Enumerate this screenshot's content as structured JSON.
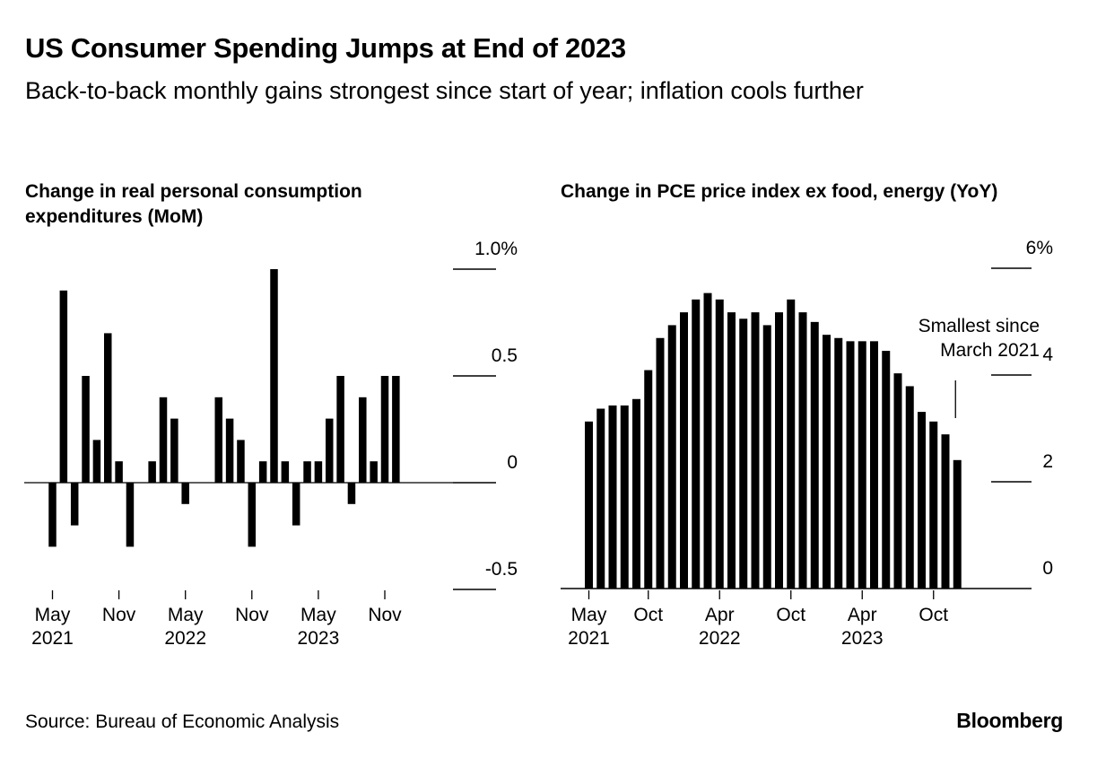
{
  "title": "US Consumer Spending Jumps at End of 2023",
  "subtitle": "Back-to-back monthly gains strongest since start of year; inflation cools further",
  "source": "Source: Bureau of Economic Analysis",
  "brand": "Bloomberg",
  "chart_data": [
    {
      "type": "bar",
      "title": "Change in real personal consumption expenditures (MoM)",
      "ylim": [
        -0.5,
        1.0
      ],
      "y_ticks": [
        {
          "value": 1.0,
          "label": "1.0%"
        },
        {
          "value": 0.5,
          "label": "0.5"
        },
        {
          "value": 0,
          "label": "0"
        },
        {
          "value": -0.5,
          "label": "-0.5"
        }
      ],
      "x_ticks": [
        {
          "index": 0,
          "label": "May",
          "sublabel": "2021"
        },
        {
          "index": 6,
          "label": "Nov",
          "sublabel": ""
        },
        {
          "index": 12,
          "label": "May",
          "sublabel": "2022"
        },
        {
          "index": 18,
          "label": "Nov",
          "sublabel": ""
        },
        {
          "index": 24,
          "label": "May",
          "sublabel": "2023"
        },
        {
          "index": 30,
          "label": "Nov",
          "sublabel": ""
        }
      ],
      "categories": [
        "2021-05",
        "2021-06",
        "2021-07",
        "2021-08",
        "2021-09",
        "2021-10",
        "2021-11",
        "2021-12",
        "2022-01",
        "2022-02",
        "2022-03",
        "2022-04",
        "2022-05",
        "2022-06",
        "2022-07",
        "2022-08",
        "2022-09",
        "2022-10",
        "2022-11",
        "2022-12",
        "2023-01",
        "2023-02",
        "2023-03",
        "2023-04",
        "2023-05",
        "2023-06",
        "2023-07",
        "2023-08",
        "2023-09",
        "2023-10",
        "2023-11",
        "2023-12"
      ],
      "values": [
        -0.3,
        0.9,
        -0.2,
        0.5,
        0.2,
        0.7,
        0.1,
        -0.3,
        0.0,
        0.1,
        0.4,
        0.3,
        -0.1,
        0.0,
        0.0,
        0.4,
        0.3,
        0.2,
        -0.3,
        0.1,
        1.0,
        0.1,
        -0.2,
        0.1,
        0.1,
        0.3,
        0.5,
        -0.1,
        0.4,
        0.1,
        0.5,
        0.5
      ],
      "grid": false,
      "color": "#000000"
    },
    {
      "type": "bar",
      "title": "Change in PCE price index ex food, energy (YoY)",
      "ylim": [
        1,
        6
      ],
      "y_ticks": [
        {
          "value": 6,
          "label": "6%"
        },
        {
          "value": 4,
          "label": "4"
        },
        {
          "value": 2,
          "label": "2"
        },
        {
          "value": 0,
          "label": "0"
        }
      ],
      "x_ticks": [
        {
          "index": 0,
          "label": "May",
          "sublabel": "2021"
        },
        {
          "index": 5,
          "label": "Oct",
          "sublabel": ""
        },
        {
          "index": 11,
          "label": "Apr",
          "sublabel": "2022"
        },
        {
          "index": 17,
          "label": "Oct",
          "sublabel": ""
        },
        {
          "index": 23,
          "label": "Apr",
          "sublabel": "2023"
        },
        {
          "index": 29,
          "label": "Oct",
          "sublabel": ""
        }
      ],
      "categories": [
        "2021-05",
        "2021-06",
        "2021-07",
        "2021-08",
        "2021-09",
        "2021-10",
        "2021-11",
        "2021-12",
        "2022-01",
        "2022-02",
        "2022-03",
        "2022-04",
        "2022-05",
        "2022-06",
        "2022-07",
        "2022-08",
        "2022-09",
        "2022-10",
        "2022-11",
        "2022-12",
        "2023-01",
        "2023-02",
        "2023-03",
        "2023-04",
        "2023-05",
        "2023-06",
        "2023-07",
        "2023-08",
        "2023-09",
        "2023-10",
        "2023-11",
        "2023-12"
      ],
      "values": [
        3.6,
        3.8,
        3.85,
        3.85,
        3.95,
        4.4,
        4.9,
        5.1,
        5.3,
        5.5,
        5.6,
        5.5,
        5.3,
        5.2,
        5.3,
        5.1,
        5.3,
        5.5,
        5.3,
        5.15,
        4.95,
        4.9,
        4.85,
        4.85,
        4.85,
        4.7,
        4.35,
        4.15,
        3.75,
        3.6,
        3.4,
        3.0
      ],
      "annotation": {
        "text": [
          "Smallest since",
          "March 2021"
        ],
        "index": 31
      },
      "grid": false,
      "color": "#000000"
    }
  ]
}
